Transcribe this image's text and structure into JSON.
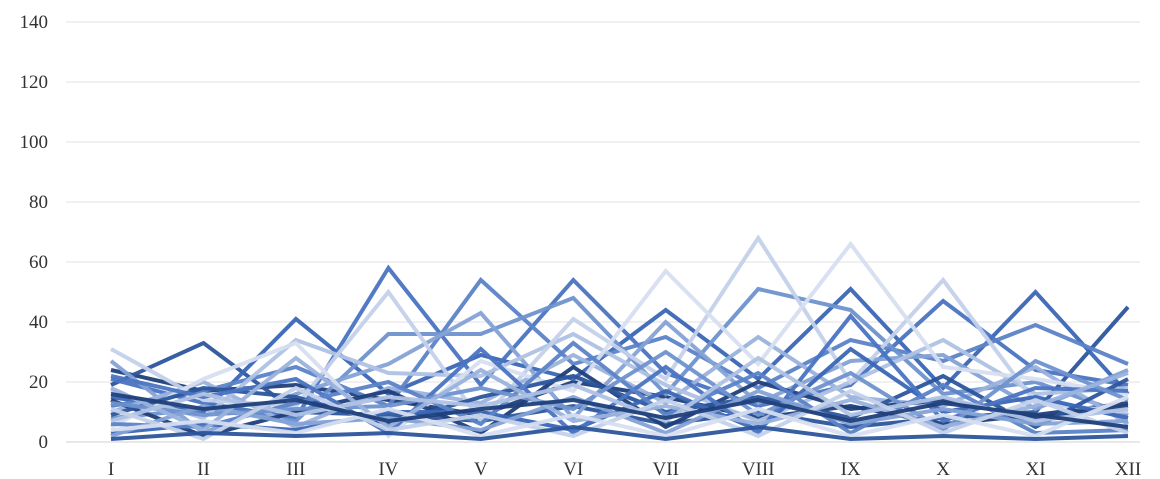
{
  "chart_data": {
    "type": "line",
    "title": "",
    "xlabel": "",
    "ylabel": "",
    "ylim": [
      0,
      140
    ],
    "yticks": [
      0,
      20,
      40,
      60,
      80,
      100,
      120,
      140
    ],
    "grid": "horizontal",
    "legend": "none",
    "categories": [
      "I",
      "II",
      "III",
      "IV",
      "V",
      "VI",
      "VII",
      "VIII",
      "IX",
      "X",
      "XI",
      "XII"
    ],
    "palette": [
      "#1f3f7a",
      "#2b559c",
      "#3a66b5",
      "#4a74c2",
      "#5b83c8",
      "#6f92cf",
      "#84a2d6",
      "#9ab2dd",
      "#afc2e4",
      "#c3d1ea",
      "#d6def0"
    ],
    "series": [
      {
        "values": [
          24,
          17,
          19,
          14,
          9,
          20,
          15,
          8,
          12,
          6,
          9,
          13
        ]
      },
      {
        "values": [
          19,
          33,
          10,
          9,
          7,
          12,
          6,
          10,
          5,
          8,
          10,
          45
        ]
      },
      {
        "values": [
          15,
          10,
          41,
          16,
          29,
          21,
          44,
          21,
          51,
          18,
          50,
          16
        ]
      },
      {
        "values": [
          21,
          13,
          8,
          58,
          19,
          54,
          23,
          12,
          19,
          47,
          24,
          19
        ]
      },
      {
        "values": [
          12,
          17,
          25,
          12,
          54,
          26,
          35,
          18,
          34,
          27,
          39,
          26
        ]
      },
      {
        "values": [
          8,
          11,
          7,
          36,
          36,
          48,
          16,
          51,
          44,
          16,
          20,
          9
        ]
      },
      {
        "values": [
          27,
          3,
          16,
          26,
          43,
          8,
          40,
          13,
          27,
          29,
          11,
          24
        ]
      },
      {
        "values": [
          10,
          20,
          5,
          18,
          13,
          29,
          13,
          35,
          15,
          12,
          25,
          6
        ]
      },
      {
        "values": [
          17,
          8,
          34,
          23,
          22,
          36,
          19,
          7,
          20,
          34,
          16,
          18
        ]
      },
      {
        "values": [
          31,
          14,
          12,
          50,
          7,
          41,
          21,
          68,
          20,
          54,
          13,
          10
        ]
      },
      {
        "values": [
          5,
          21,
          33,
          2,
          27,
          17,
          57,
          26,
          66,
          25,
          21,
          16
        ]
      },
      {
        "values": [
          14,
          2,
          10,
          17,
          3,
          25,
          5,
          20,
          11,
          14,
          8,
          12
        ]
      },
      {
        "values": [
          9,
          18,
          15,
          6,
          15,
          22,
          10,
          15,
          8,
          22,
          5,
          21
        ]
      },
      {
        "values": [
          3,
          6,
          4,
          10,
          10,
          4,
          17,
          4,
          31,
          10,
          15,
          8
        ]
      },
      {
        "values": [
          22,
          15,
          21,
          3,
          31,
          3,
          25,
          3,
          42,
          7,
          18,
          17
        ]
      },
      {
        "values": [
          6,
          5,
          13,
          20,
          6,
          33,
          9,
          23,
          3,
          19,
          3,
          4
        ]
      },
      {
        "values": [
          13,
          9,
          11,
          12,
          18,
          11,
          30,
          9,
          23,
          4,
          27,
          14
        ]
      },
      {
        "values": [
          2,
          12,
          6,
          8,
          4,
          15,
          3,
          17,
          6,
          11,
          6,
          7
        ]
      },
      {
        "values": [
          18,
          4,
          28,
          5,
          24,
          7,
          12,
          6,
          14,
          5,
          12,
          23
        ]
      },
      {
        "values": [
          7,
          16,
          9,
          15,
          12,
          19,
          7,
          28,
          9,
          15,
          7,
          11
        ]
      },
      {
        "values": [
          11,
          1,
          18,
          4,
          9,
          2,
          14,
          2,
          17,
          3,
          14,
          3
        ]
      },
      {
        "values": [
          4,
          7,
          3,
          11,
          2,
          9,
          2,
          11,
          2,
          9,
          2,
          15
        ]
      },
      {
        "values": [
          16,
          11,
          14,
          7,
          11,
          14,
          8,
          14,
          7,
          13,
          9,
          5
        ]
      },
      {
        "values": [
          1,
          3,
          2,
          3,
          1,
          5,
          1,
          5,
          1,
          2,
          1,
          2
        ]
      }
    ]
  }
}
